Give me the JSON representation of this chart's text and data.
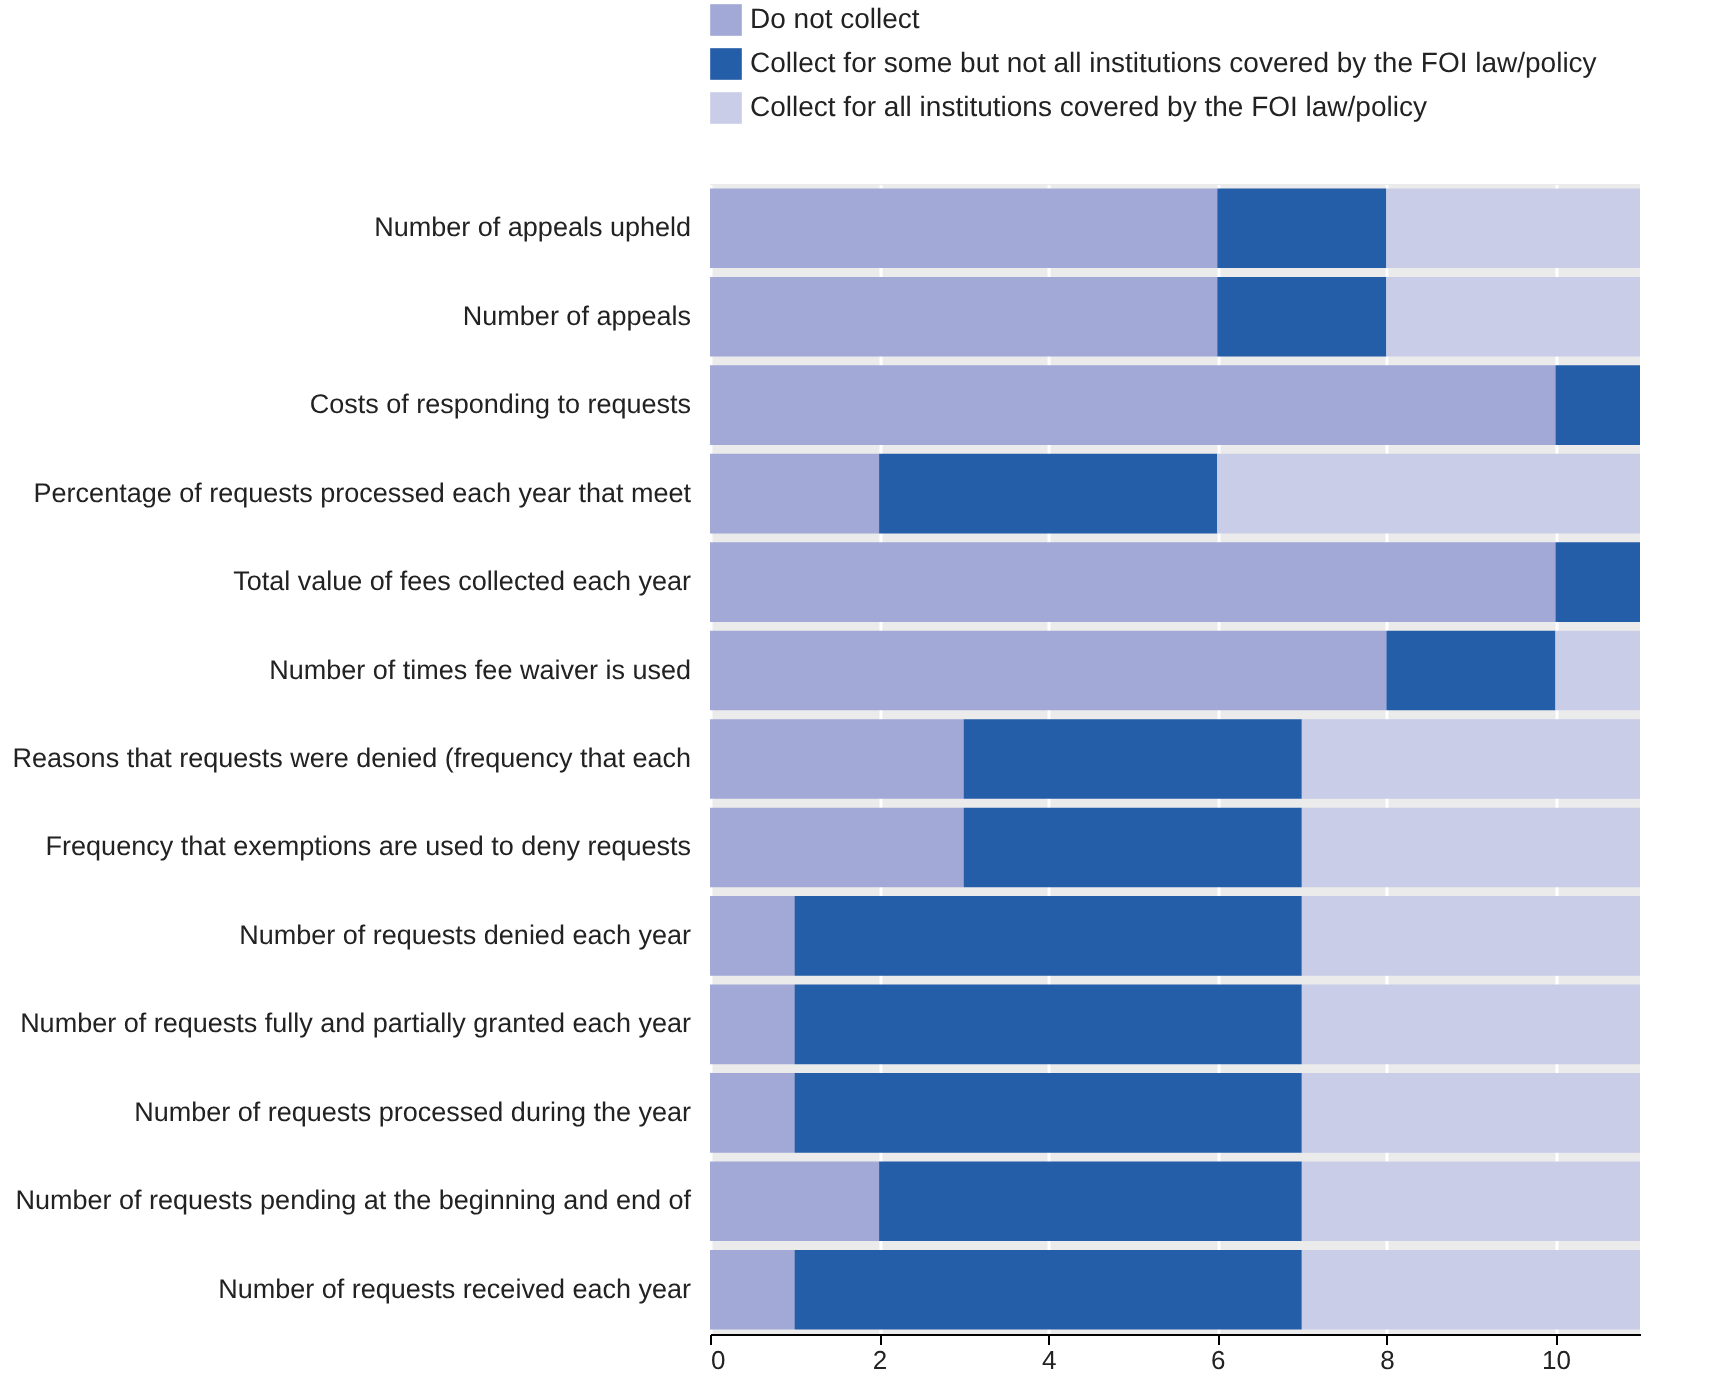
{
  "chart_data": {
    "type": "bar",
    "orientation": "horizontal",
    "stacked": true,
    "legend": "top",
    "grid": "x",
    "categories": [
      "Number of appeals upheld",
      "Number of appeals",
      "Costs of responding to requests",
      "Percentage of requests processed each year that meet",
      "Total value of fees collected each year",
      "Number of times fee waiver is used",
      "Reasons that requests were denied (frequency that each",
      "Frequency that exemptions are used to deny requests",
      "Number of requests denied each year",
      "Number of requests fully and partially granted each year",
      "Number of requests processed during the year",
      "Number of requests pending at the beginning and end of",
      "Number of requests received each year"
    ],
    "series": [
      {
        "name": "Do not collect",
        "color": "#a2a9d6",
        "values": [
          6,
          6,
          10,
          2,
          10,
          8,
          3,
          3,
          1,
          1,
          1,
          2,
          1
        ]
      },
      {
        "name": "Collect for some but not all institutions covered by the FOI law/policy",
        "color": "#245da8",
        "values": [
          2,
          2,
          1,
          4,
          1,
          2,
          4,
          4,
          6,
          6,
          6,
          5,
          6
        ]
      },
      {
        "name": "Collect for all institutions covered by the FOI law/policy",
        "color": "#c9cde8",
        "values": [
          3,
          3,
          0,
          5,
          0,
          1,
          4,
          4,
          4,
          4,
          4,
          4,
          4
        ]
      }
    ],
    "xlim": [
      0,
      11
    ],
    "xticks": [
      0,
      2,
      4,
      6,
      8,
      10
    ]
  }
}
